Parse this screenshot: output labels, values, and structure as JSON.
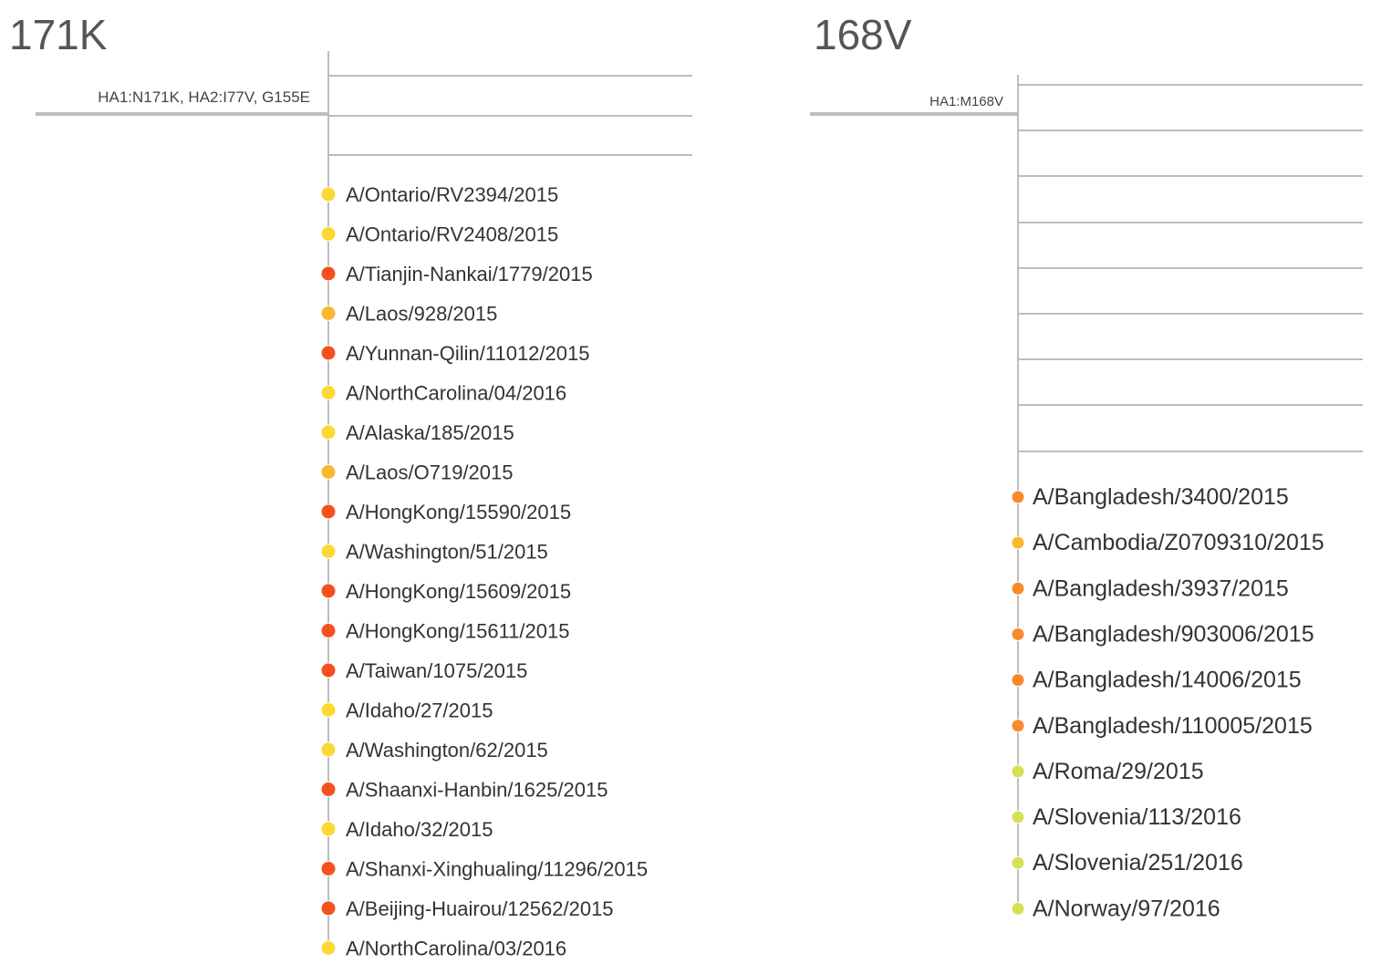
{
  "colors": {
    "branch": "#bdbdbd",
    "title_text": "#555555",
    "label_text": "#333333",
    "mutation_text": "#444444",
    "yellow": "#fdd835",
    "amber": "#fbb732",
    "orange": "#f98a2c",
    "red": "#f4511e",
    "lime": "#d4e157"
  },
  "panels": [
    {
      "title": "171K",
      "mutation_label": "HA1:N171K, HA2:I77V, G155E",
      "tips": [
        {
          "name": "A/Ontario/RV2394/2015",
          "color": "yellow"
        },
        {
          "name": "A/Ontario/RV2408/2015",
          "color": "yellow"
        },
        {
          "name": "A/Tianjin-Nankai/1779/2015",
          "color": "red"
        },
        {
          "name": "A/Laos/928/2015",
          "color": "amber"
        },
        {
          "name": "A/Yunnan-Qilin/11012/2015",
          "color": "red"
        },
        {
          "name": "A/NorthCarolina/04/2016",
          "color": "yellow"
        },
        {
          "name": "A/Alaska/185/2015",
          "color": "yellow"
        },
        {
          "name": "A/Laos/O719/2015",
          "color": "amber"
        },
        {
          "name": "A/HongKong/15590/2015",
          "color": "red"
        },
        {
          "name": "A/Washington/51/2015",
          "color": "yellow"
        },
        {
          "name": "A/HongKong/15609/2015",
          "color": "red"
        },
        {
          "name": "A/HongKong/15611/2015",
          "color": "red"
        },
        {
          "name": "A/Taiwan/1075/2015",
          "color": "red"
        },
        {
          "name": "A/Idaho/27/2015",
          "color": "yellow"
        },
        {
          "name": "A/Washington/62/2015",
          "color": "yellow"
        },
        {
          "name": "A/Shaanxi-Hanbin/1625/2015",
          "color": "red"
        },
        {
          "name": "A/Idaho/32/2015",
          "color": "yellow"
        },
        {
          "name": "A/Shanxi-Xinghualing/11296/2015",
          "color": "red"
        },
        {
          "name": "A/Beijing-Huairou/12562/2015",
          "color": "red"
        },
        {
          "name": "A/NorthCarolina/03/2016",
          "color": "yellow"
        }
      ]
    },
    {
      "title": "168V",
      "mutation_label": "HA1:M168V",
      "tips": [
        {
          "name": "A/Bangladesh/3400/2015",
          "color": "orange"
        },
        {
          "name": "A/Cambodia/Z0709310/2015",
          "color": "amber"
        },
        {
          "name": "A/Bangladesh/3937/2015",
          "color": "orange"
        },
        {
          "name": "A/Bangladesh/903006/2015",
          "color": "orange"
        },
        {
          "name": "A/Bangladesh/14006/2015",
          "color": "orange"
        },
        {
          "name": "A/Bangladesh/110005/2015",
          "color": "orange"
        },
        {
          "name": "A/Roma/29/2015",
          "color": "lime"
        },
        {
          "name": "A/Slovenia/113/2016",
          "color": "lime"
        },
        {
          "name": "A/Slovenia/251/2016",
          "color": "lime"
        },
        {
          "name": "A/Norway/97/2016",
          "color": "lime"
        }
      ]
    }
  ]
}
